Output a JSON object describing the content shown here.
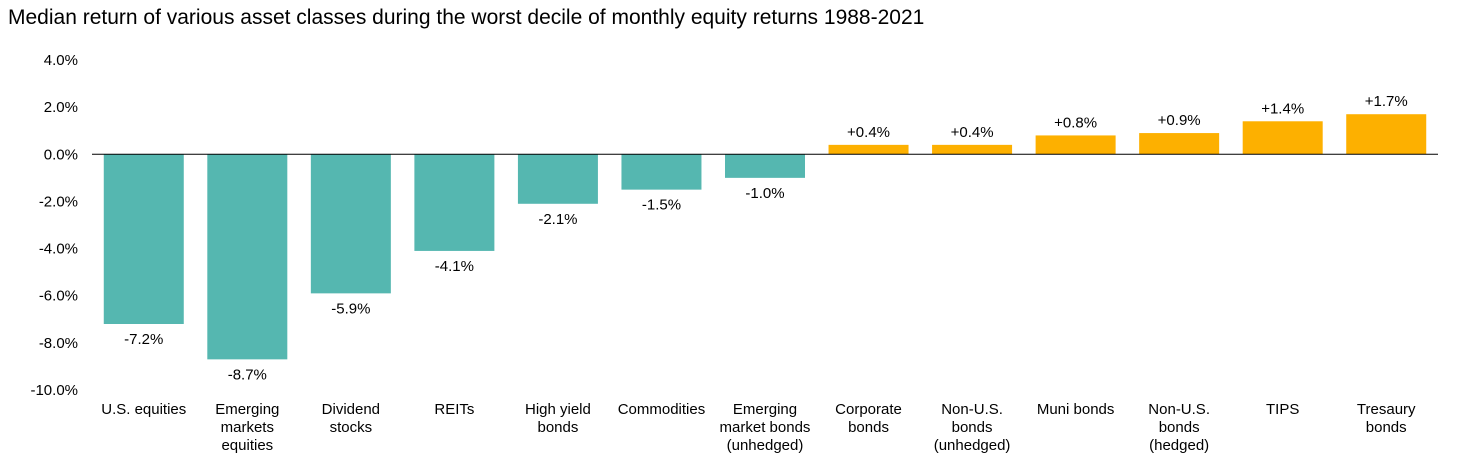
{
  "chart_data": {
    "type": "bar",
    "title": "Median return of various asset classes during the worst decile of monthly equity returns 1988-2021",
    "xlabel": "",
    "ylabel": "",
    "ylim": [
      -10.0,
      4.0
    ],
    "yticks": [
      4.0,
      2.0,
      0.0,
      -2.0,
      -4.0,
      -6.0,
      -8.0,
      -10.0
    ],
    "ytick_labels": [
      "4.0%",
      "2.0%",
      "0.0%",
      "-2.0%",
      "-4.0%",
      "-6.0%",
      "-8.0%",
      "-10.0%"
    ],
    "grid": false,
    "legend": "none",
    "categories": [
      [
        "U.S. equities"
      ],
      [
        "Emerging",
        "markets",
        "equities"
      ],
      [
        "Dividend",
        "stocks"
      ],
      [
        "REITs"
      ],
      [
        "High yield",
        "bonds"
      ],
      [
        "Commodities"
      ],
      [
        "Emerging",
        "market bonds",
        "(unhedged)"
      ],
      [
        "Corporate",
        "bonds"
      ],
      [
        "Non-U.S.",
        "bonds",
        "(unhedged)"
      ],
      [
        "Muni bonds"
      ],
      [
        "Non-U.S.",
        "bonds",
        "(hedged)"
      ],
      [
        "TIPS"
      ],
      [
        "Tresaury",
        "bonds"
      ]
    ],
    "values": [
      -7.2,
      -8.7,
      -5.9,
      -4.1,
      -2.1,
      -1.5,
      -1.0,
      0.4,
      0.4,
      0.8,
      0.9,
      1.4,
      1.7
    ],
    "data_labels": [
      "-7.2%",
      "-8.7%",
      "-5.9%",
      "-4.1%",
      "-2.1%",
      "-1.5%",
      "-1.0%",
      "+0.4%",
      "+0.4%",
      "+0.8%",
      "+0.9%",
      "+1.4%",
      "+1.7%"
    ],
    "colors": {
      "negative": "#55B7B0",
      "positive": "#FDB000",
      "axis": "#000000"
    }
  }
}
